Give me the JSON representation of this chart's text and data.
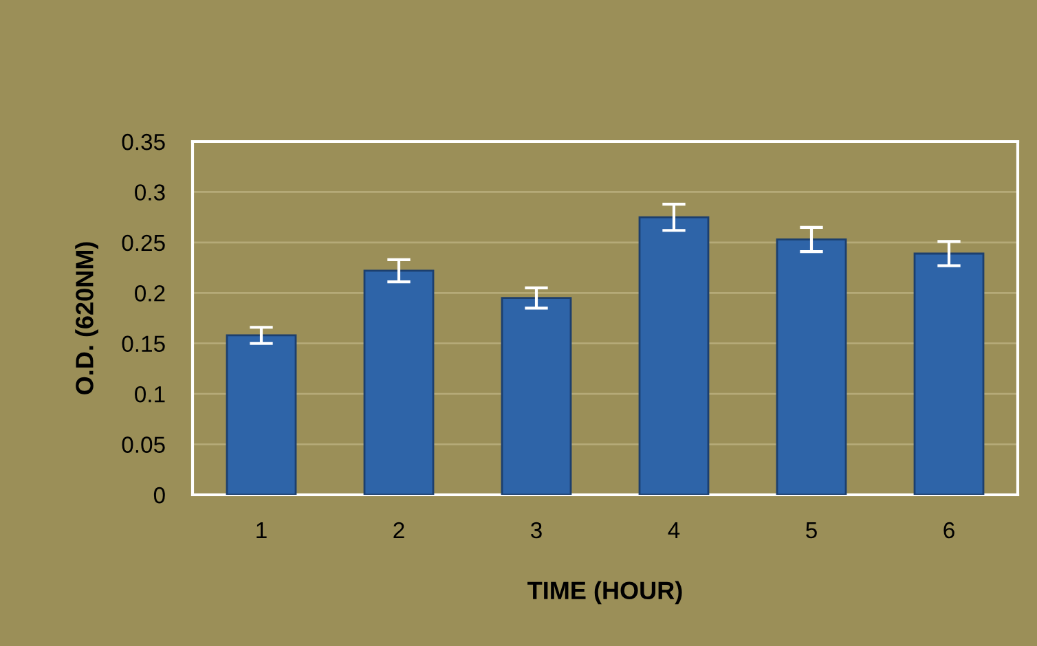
{
  "chart_data": {
    "type": "bar",
    "xlabel": "TIME (HOUR)",
    "ylabel": "O.D. (620NM)",
    "categories": [
      "1",
      "2",
      "3",
      "4",
      "5",
      "6"
    ],
    "values": [
      0.158,
      0.222,
      0.195,
      0.275,
      0.253,
      0.239
    ],
    "errors": [
      0.008,
      0.011,
      0.01,
      0.013,
      0.012,
      0.012
    ],
    "color": "#2e64a8",
    "ylim": [
      0,
      0.35
    ],
    "yticks": [
      0,
      {
        "value": 0.05,
        "label": "0.05"
      },
      {
        "value": 0.1,
        "label": "0.1"
      },
      {
        "value": 0.15,
        "label": "0.15"
      },
      {
        "value": 0.2,
        "label": "0.2"
      },
      {
        "value": 0.25,
        "label": "0.25"
      },
      {
        "value": 0.3,
        "label": "0.3"
      },
      {
        "value": 0.35,
        "label": "0.35"
      }
    ],
    "grid": "y"
  }
}
